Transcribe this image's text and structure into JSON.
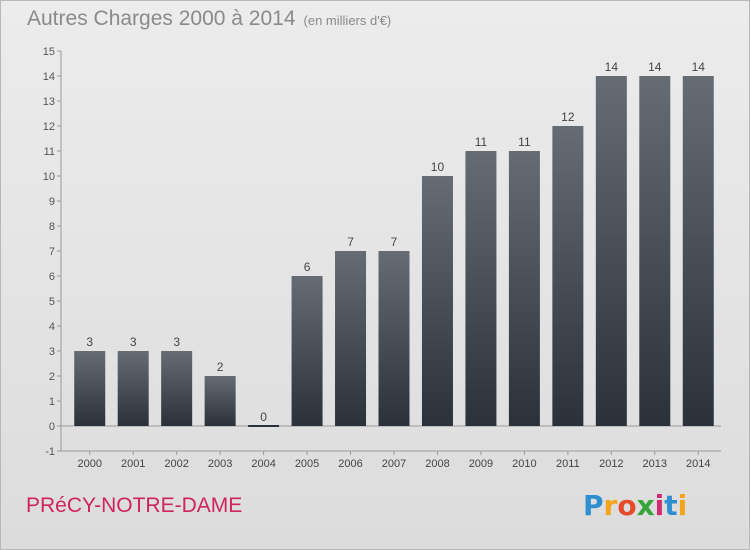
{
  "title": "Autres Charges 2000 à 2014",
  "subtitle": "(en milliers d'€)",
  "town": "PRéCY-NOTRE-DAME",
  "logo_text": "Proxiti",
  "colors": {
    "bar_top": "#666c73",
    "bar_bottom": "#2b3139",
    "town": "#d0245e"
  },
  "chart_data": {
    "type": "bar",
    "title": "Autres Charges 2000 à 2014",
    "subtitle": "(en milliers d'€)",
    "categories": [
      "2000",
      "2001",
      "2002",
      "2003",
      "2004",
      "2005",
      "2006",
      "2007",
      "2008",
      "2009",
      "2010",
      "2011",
      "2012",
      "2013",
      "2014"
    ],
    "values": [
      3,
      3,
      3,
      2,
      0,
      6,
      7,
      7,
      10,
      11,
      11,
      12,
      14,
      14,
      14
    ],
    "ylim": [
      -1,
      15
    ],
    "yticks": [
      "-1",
      "0",
      "1",
      "2",
      "3",
      "4",
      "5",
      "6",
      "7",
      "8",
      "9",
      "10",
      "11",
      "12",
      "13",
      "14",
      "15"
    ],
    "grid": false,
    "legend": "none"
  }
}
